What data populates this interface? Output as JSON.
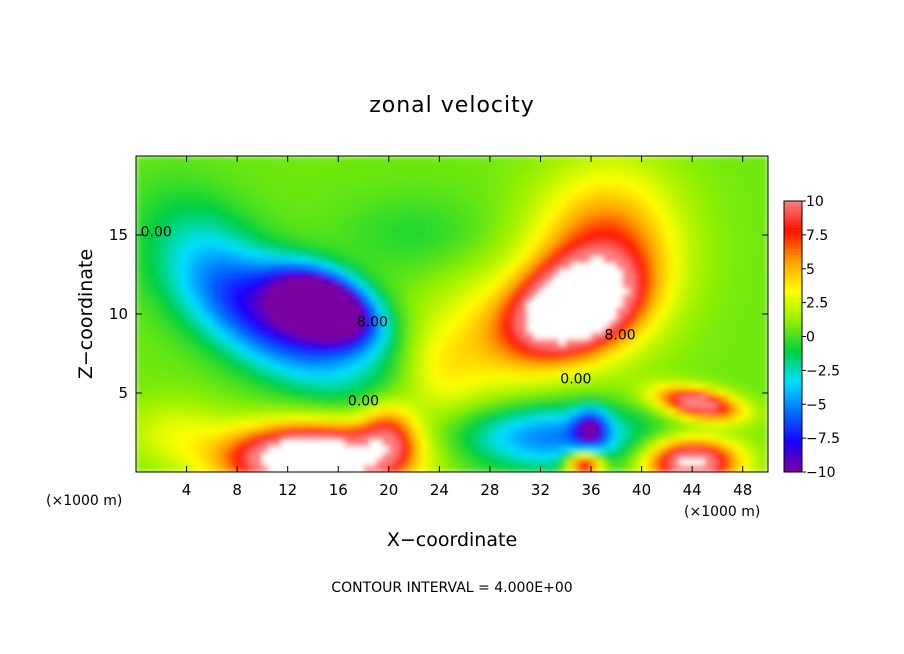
{
  "chart_data": {
    "type": "heatmap",
    "title": "zonal velocity",
    "xlabel": "X−coordinate",
    "ylabel": "Z−coordinate",
    "x_units_left": "(×1000 m)",
    "x_units_right": "(×1000 m)",
    "footer": "CONTOUR INTERVAL = 4.000E+00",
    "xlim": [
      0,
      50
    ],
    "ylim": [
      0,
      20
    ],
    "x_ticks": [
      4,
      8,
      12,
      16,
      20,
      24,
      28,
      32,
      36,
      40,
      44,
      48
    ],
    "y_ticks": [
      5,
      10,
      15
    ],
    "colorbar": {
      "range": [
        -10,
        10
      ],
      "ticks": [
        {
          "value": 10,
          "label": "10"
        },
        {
          "value": 7.5,
          "label": "7.5"
        },
        {
          "value": 5,
          "label": "5"
        },
        {
          "value": 2.5,
          "label": "2.5"
        },
        {
          "value": 0,
          "label": "0"
        },
        {
          "value": -2.5,
          "label": "−2.5"
        },
        {
          "value": -5,
          "label": "−5"
        },
        {
          "value": -7.5,
          "label": "−7.5"
        },
        {
          "value": -10,
          "label": "−10"
        }
      ],
      "colors": [
        "#7a00a0",
        "#1a00ff",
        "#0070ff",
        "#00e0ff",
        "#00d040",
        "#90f000",
        "#ffff00",
        "#ffa000",
        "#ff1000",
        "#ff8080",
        "#ffffff"
      ]
    },
    "contour_labels": [
      {
        "text": "0.00",
        "x": 1.6,
        "y": 14.9
      },
      {
        "text": "0.00",
        "x": 18.0,
        "y": 4.2
      },
      {
        "text": "0.00",
        "x": 34.8,
        "y": 5.6
      },
      {
        "text": "8.00",
        "x": 18.7,
        "y": 9.2
      },
      {
        "text": "8.00",
        "x": 38.3,
        "y": 8.4
      }
    ],
    "features": [
      {
        "x": 15.0,
        "y": 10.5,
        "value": -17,
        "sx": 3.8,
        "sy": 1.9,
        "rot": -18
      },
      {
        "x": 11.0,
        "y": 9.4,
        "value": -8,
        "sx": 7.5,
        "sy": 3.0,
        "rot": -22
      },
      {
        "x": 6.0,
        "y": 14.0,
        "value": -2.5,
        "sx": 5.5,
        "sy": 3.3,
        "rot": -30
      },
      {
        "x": 22.0,
        "y": 15.0,
        "value": -1.2,
        "sx": 6.0,
        "sy": 2.5,
        "rot": 0
      },
      {
        "x": 34.5,
        "y": 10.3,
        "value": 15,
        "sx": 4.5,
        "sy": 2.6,
        "rot": 15
      },
      {
        "x": 37.0,
        "y": 13.5,
        "value": 7,
        "sx": 5.5,
        "sy": 5.0,
        "rot": 25
      },
      {
        "x": 28.0,
        "y": 8.5,
        "value": 3,
        "sx": 5.0,
        "sy": 4.0,
        "rot": 0
      },
      {
        "x": 44.5,
        "y": 4.3,
        "value": 11,
        "sx": 3.2,
        "sy": 0.9,
        "rot": -8
      },
      {
        "x": 14.0,
        "y": 0.8,
        "value": 16,
        "sx": 6.5,
        "sy": 2.0,
        "rot": 0
      },
      {
        "x": 20.0,
        "y": 2.3,
        "value": 6,
        "sx": 2.2,
        "sy": 2.0,
        "rot": 0
      },
      {
        "x": 33.0,
        "y": 2.2,
        "value": -6,
        "sx": 7.0,
        "sy": 2.0,
        "rot": 0
      },
      {
        "x": 36.0,
        "y": 2.7,
        "value": -7,
        "sx": 1.3,
        "sy": 1.2,
        "rot": 0
      },
      {
        "x": 44.0,
        "y": 0.6,
        "value": 12,
        "sx": 3.5,
        "sy": 1.4,
        "rot": 0
      },
      {
        "x": 35.5,
        "y": 0.5,
        "value": 10,
        "sx": 1.4,
        "sy": 0.8,
        "rot": 0
      },
      {
        "x": 3.0,
        "y": 2.5,
        "value": 2,
        "sx": 4.0,
        "sy": 2.0,
        "rot": 0
      },
      {
        "x": 24.0,
        "y": 6.0,
        "value": 2,
        "sx": 3.0,
        "sy": 3.0,
        "rot": 0
      }
    ],
    "background_value": 0.6,
    "grid": false,
    "legend": "right"
  }
}
